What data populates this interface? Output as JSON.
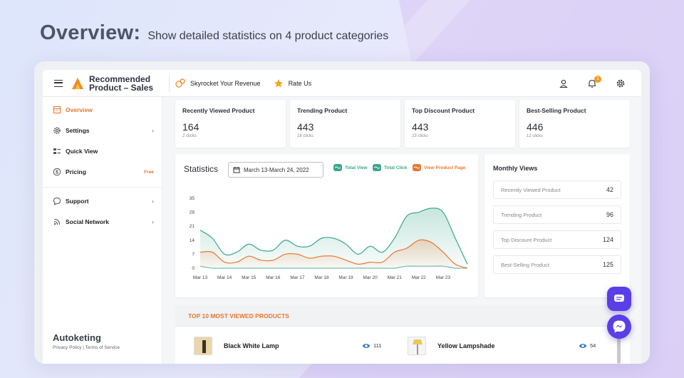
{
  "headline": {
    "title": "Overview:",
    "subtitle": "Show detailed statistics on 4 product categories"
  },
  "topbar": {
    "brand_line1": "Recommended",
    "brand_line2": "Product – Sales",
    "links": [
      {
        "icon": "coins-icon",
        "label": "Skyrocket Your Revenue"
      },
      {
        "icon": "star-icon",
        "label": "Rate Us"
      }
    ],
    "notification_count": "1"
  },
  "sidebar": {
    "items": [
      {
        "label": "Overview",
        "icon": "storefront-icon"
      },
      {
        "label": "Settings",
        "icon": "gear-icon"
      },
      {
        "label": "Quick View",
        "icon": "quick-view-icon"
      },
      {
        "label": "Pricing",
        "icon": "dollar-icon",
        "badge": "Free"
      },
      {
        "label": "Support",
        "icon": "chat-bubble-icon"
      },
      {
        "label": "Social Network",
        "icon": "rss-icon"
      }
    ],
    "footer_brand": "Autoketing",
    "footer_links": "Privacy Policy | Terms of Service"
  },
  "stats": [
    {
      "title": "Recently Viewed Product",
      "value": "164",
      "sub": "2 clicks"
    },
    {
      "title": "Trending Product",
      "value": "443",
      "sub": "18 clicks"
    },
    {
      "title": "Top Discount Product",
      "value": "443",
      "sub": "23 clicks"
    },
    {
      "title": "Best-Selling Product",
      "value": "446",
      "sub": "12 clicks"
    }
  ],
  "statistics": {
    "title": "Statistics",
    "date_range": "March 13-March 24, 2022",
    "legend": [
      {
        "label": "Total View",
        "color": "#3aa68a"
      },
      {
        "label": "Total Click",
        "color": "#3aa68a"
      },
      {
        "label": "View Product Page",
        "color": "#e8772e"
      }
    ]
  },
  "chart_data": {
    "type": "area",
    "x": [
      "Mar 13",
      "",
      "Mar 14",
      "",
      "Mar 15",
      "",
      "Mar 16",
      "",
      "Mar 17",
      "",
      "Mar 18",
      "",
      "Mar 19",
      "",
      "Mar 20",
      "",
      "Mar 21",
      "",
      "Mar 22",
      "",
      "Mar 23",
      "",
      ""
    ],
    "x_ticks": [
      "Mar 13",
      "Mar 14",
      "Mar 15",
      "Mar 16",
      "Mar 17",
      "Mar 18",
      "Mar 19",
      "Mar 20",
      "Mar 21",
      "Mar 22",
      "Mar 23"
    ],
    "ylim": [
      0,
      35
    ],
    "yticks": [
      0,
      7,
      14,
      21,
      28,
      35
    ],
    "series": [
      {
        "name": "Total View",
        "color": "#3aa68a",
        "values": [
          19,
          15,
          7,
          8,
          12,
          9,
          9,
          14,
          11,
          11,
          15,
          15,
          12,
          7,
          11,
          8,
          15,
          26,
          28,
          30,
          28,
          15,
          2
        ]
      },
      {
        "name": "Total Click",
        "color": "#3aa68a",
        "values": [
          1,
          0,
          0,
          0,
          0,
          0,
          0,
          0,
          0,
          0,
          0,
          0,
          0,
          0,
          0,
          0,
          0,
          1,
          1,
          1,
          1,
          0,
          0
        ]
      },
      {
        "name": "View Product Page",
        "color": "#e8772e",
        "values": [
          8,
          8,
          3,
          3,
          6,
          4,
          4,
          7,
          7,
          5,
          6,
          6,
          4,
          2,
          3,
          3,
          8,
          10,
          14,
          13,
          8,
          2,
          0
        ]
      }
    ],
    "grid": false
  },
  "monthly": {
    "title": "Monthly Views",
    "rows": [
      {
        "label": "Recently Viewed Product",
        "value": "42"
      },
      {
        "label": "Trending Product",
        "value": "96"
      },
      {
        "label": "Top Discount Product",
        "value": "124"
      },
      {
        "label": "Best-Selling Product",
        "value": "125"
      }
    ]
  },
  "top10": {
    "heading": "TOP 10 MOST VIEWED PRODUCTS",
    "products": [
      {
        "name": "Black White Lamp",
        "views": "111"
      },
      {
        "name": "Yellow Lampshade",
        "views": "54"
      }
    ]
  }
}
